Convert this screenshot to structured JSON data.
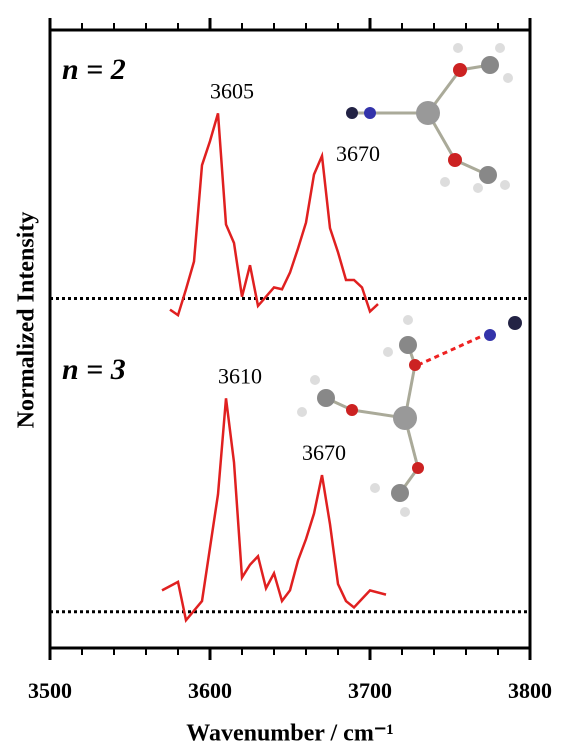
{
  "chart_data": {
    "type": "line",
    "x_label": "Wavenumber / cm⁻¹",
    "y_label": "Normalized Intensity",
    "xlim": [
      3500,
      3800
    ],
    "xticks": [
      3500,
      3600,
      3700,
      3800
    ],
    "minor_xticks": [
      3520,
      3540,
      3560,
      3580,
      3620,
      3640,
      3660,
      3680,
      3720,
      3740,
      3760,
      3780
    ],
    "panels": [
      {
        "label": "n = 2",
        "color": "#e02020",
        "ylim": [
          -0.17,
          1.45
        ],
        "x": [
          3575,
          3580,
          3585,
          3590,
          3595,
          3600,
          3605,
          3610,
          3615,
          3620,
          3625,
          3630,
          3635,
          3640,
          3645,
          3650,
          3655,
          3660,
          3665,
          3670,
          3675,
          3680,
          3685,
          3690,
          3695,
          3700,
          3705
        ],
        "values": [
          -0.06,
          -0.09,
          0.05,
          0.2,
          0.72,
          0.85,
          1.0,
          0.4,
          0.3,
          0.01,
          0.18,
          -0.04,
          0.01,
          0.06,
          0.05,
          0.14,
          0.27,
          0.41,
          0.67,
          0.77,
          0.38,
          0.25,
          0.1,
          0.1,
          0.06,
          -0.07,
          -0.03
        ],
        "annotations": [
          "3605",
          "3670"
        ]
      },
      {
        "label": "n = 3",
        "color": "#e02020",
        "ylim": [
          -0.17,
          1.32
        ],
        "x": [
          3570,
          3580,
          3585,
          3595,
          3605,
          3610,
          3615,
          3620,
          3625,
          3630,
          3635,
          3640,
          3645,
          3650,
          3655,
          3660,
          3665,
          3670,
          3675,
          3680,
          3685,
          3690,
          3695,
          3700,
          3710
        ],
        "values": [
          0.1,
          0.14,
          -0.04,
          0.05,
          0.55,
          1.0,
          0.7,
          0.16,
          0.22,
          0.26,
          0.11,
          0.18,
          0.05,
          0.1,
          0.24,
          0.34,
          0.46,
          0.64,
          0.41,
          0.13,
          0.05,
          0.02,
          0.06,
          0.1,
          0.08
        ],
        "annotations": [
          "3610",
          "3670"
        ]
      }
    ]
  }
}
